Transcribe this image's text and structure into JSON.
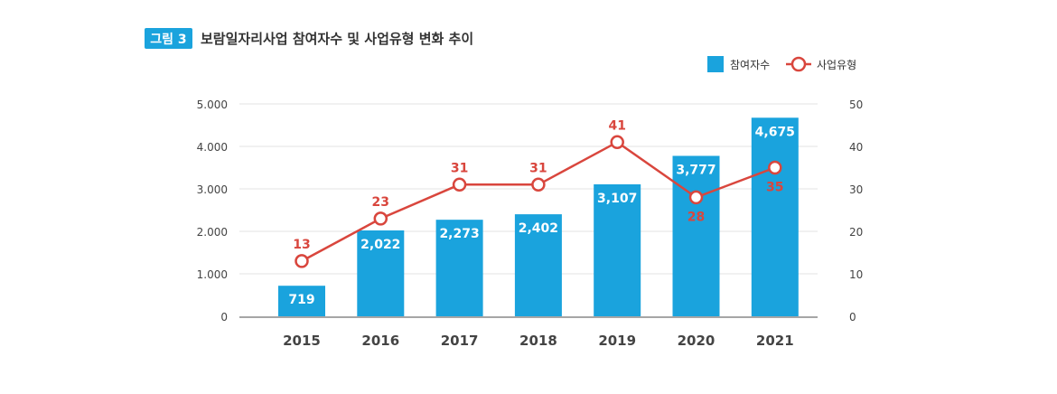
{
  "figure_label": "그림 3",
  "title": "보람일자리사업 참여자수 및 사업유형 변화 추이",
  "colors": {
    "bar": "#1aa3dd",
    "line": "#d9463d",
    "label_bg": "#1aa3dd",
    "grid": "#e3e3e3"
  },
  "chart_data": {
    "type": "bar+line",
    "categories": [
      "2015",
      "2016",
      "2017",
      "2018",
      "2019",
      "2020",
      "2021"
    ],
    "series": [
      {
        "name": "참여자수",
        "type": "bar",
        "axis": "left",
        "values": [
          719,
          2022,
          2273,
          2402,
          3107,
          3777,
          4675
        ],
        "labels": [
          "719",
          "2,022",
          "2,273",
          "2,402",
          "3,107",
          "3,777",
          "4,675"
        ]
      },
      {
        "name": "사업유형",
        "type": "line",
        "axis": "right",
        "values": [
          13,
          23,
          31,
          31,
          41,
          28,
          35
        ],
        "labels": [
          "13",
          "23",
          "31",
          "31",
          "41",
          "28",
          "35"
        ]
      }
    ],
    "y_left": {
      "range": [
        0,
        5000
      ],
      "ticks": [
        0,
        1000,
        2000,
        3000,
        4000,
        5000
      ],
      "tick_labels": [
        "0",
        "1.000",
        "2.000",
        "3.000",
        "4.000",
        "5.000"
      ]
    },
    "y_right": {
      "range": [
        0,
        50
      ],
      "ticks": [
        0,
        10,
        20,
        30,
        40,
        50
      ],
      "tick_labels": [
        "0",
        "10",
        "20",
        "30",
        "40",
        "50"
      ]
    },
    "grid": true,
    "legend": "top-right"
  }
}
